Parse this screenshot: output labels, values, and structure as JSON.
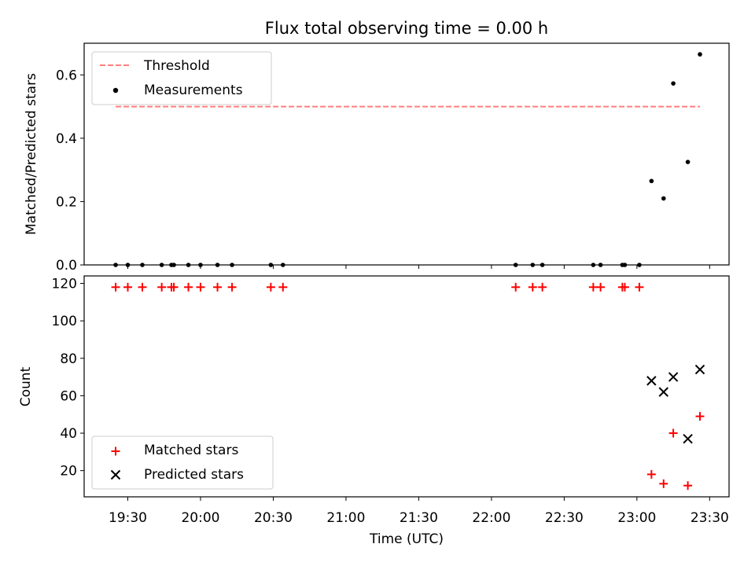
{
  "title": "Flux total observing time = 0.00 h",
  "colors": {
    "threshold": "#ff7f7f",
    "measurement": "#000000",
    "matched": "#ff0000",
    "predicted": "#000000"
  },
  "chart_data": [
    {
      "type": "scatter",
      "panel": "top",
      "ylabel": "Matched/Predicted stars",
      "xlim": [
        "19:12",
        "23:38"
      ],
      "ylim": [
        0,
        0.7
      ],
      "yticks": [
        0.0,
        0.2,
        0.4,
        0.6
      ],
      "ytick_labels": [
        "0.0",
        "0.2",
        "0.4",
        "0.6"
      ],
      "legend": {
        "placement": "top-left",
        "entries": [
          "Threshold",
          "Measurements"
        ]
      },
      "threshold": {
        "name": "Threshold",
        "x": [
          "19:25",
          "23:26"
        ],
        "y": 0.5,
        "style": "dashed"
      },
      "series": [
        {
          "name": "Measurements",
          "marker": "dot",
          "x": [
            "19:25",
            "19:30",
            "19:36",
            "19:44",
            "19:48",
            "19:49",
            "19:55",
            "20:00",
            "20:07",
            "20:13",
            "20:29",
            "20:34",
            "22:10",
            "22:17",
            "22:21",
            "22:42",
            "22:45",
            "22:54",
            "22:55",
            "23:01",
            "23:06",
            "23:11",
            "23:15",
            "23:21",
            "23:26"
          ],
          "y": [
            0,
            0,
            0,
            0,
            0,
            0,
            0,
            0,
            0,
            0,
            0,
            0,
            0,
            0,
            0,
            0,
            0,
            0,
            0,
            0,
            0.265,
            0.21,
            0.573,
            0.325,
            0.665
          ]
        }
      ]
    },
    {
      "type": "scatter",
      "panel": "bottom",
      "xlabel": "Time (UTC)",
      "ylabel": "Count",
      "xlim": [
        "19:12",
        "23:38"
      ],
      "ylim": [
        6,
        124
      ],
      "xticks": [
        "19:30",
        "20:00",
        "20:30",
        "21:00",
        "21:30",
        "22:00",
        "22:30",
        "23:00",
        "23:30"
      ],
      "yticks": [
        20,
        40,
        60,
        80,
        100,
        120
      ],
      "ytick_labels": [
        "20",
        "40",
        "60",
        "80",
        "100",
        "120"
      ],
      "legend": {
        "placement": "bottom-left",
        "entries": [
          "Matched stars",
          "Predicted stars"
        ]
      },
      "series": [
        {
          "name": "Matched stars",
          "marker": "plus",
          "x": [
            "19:25",
            "19:30",
            "19:36",
            "19:44",
            "19:48",
            "19:49",
            "19:55",
            "20:00",
            "20:07",
            "20:13",
            "20:29",
            "20:34",
            "22:10",
            "22:17",
            "22:21",
            "22:42",
            "22:45",
            "22:54",
            "22:55",
            "23:01",
            "23:06",
            "23:11",
            "23:15",
            "23:21",
            "23:26"
          ],
          "y": [
            118,
            118,
            118,
            118,
            118,
            118,
            118,
            118,
            118,
            118,
            118,
            118,
            118,
            118,
            118,
            118,
            118,
            118,
            118,
            118,
            18,
            13,
            40,
            12,
            49
          ]
        },
        {
          "name": "Predicted stars",
          "marker": "x",
          "x": [
            "23:06",
            "23:11",
            "23:15",
            "23:21",
            "23:26"
          ],
          "y": [
            68,
            62,
            70,
            37,
            74
          ]
        }
      ]
    }
  ]
}
